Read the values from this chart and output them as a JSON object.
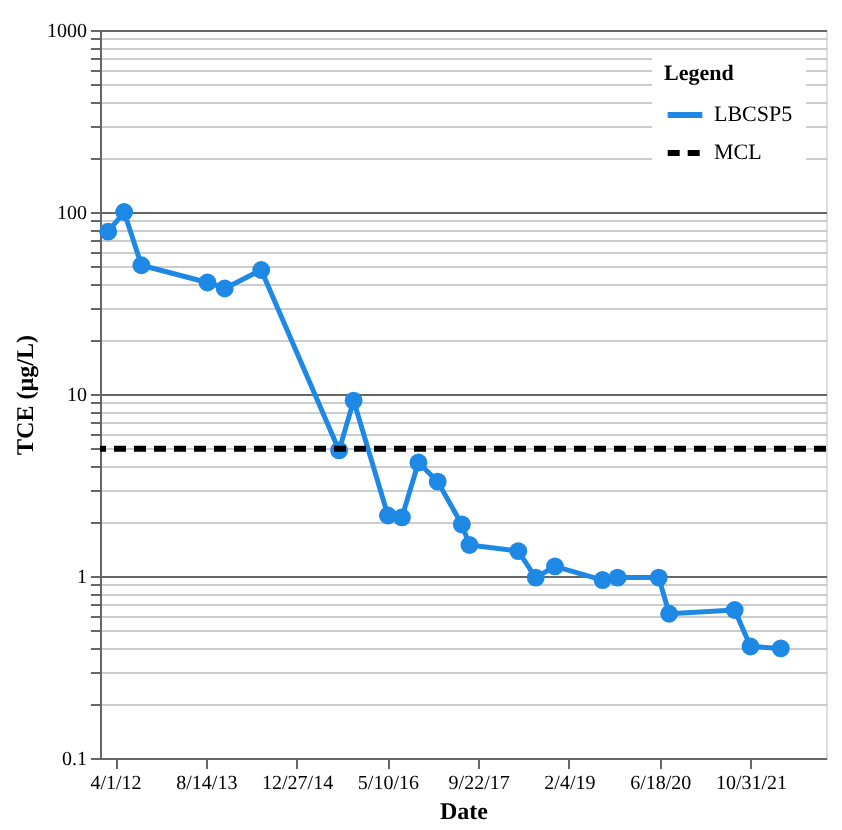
{
  "chart_data": {
    "type": "line",
    "xlabel": "Date",
    "ylabel": "TCE (µg/L)",
    "legend_title": "Legend",
    "legend": "top right",
    "grid": "y",
    "log": "y",
    "marker": "circle",
    "line_style": "solid",
    "x": [
      "2012-02-23",
      "2012-05-21",
      "2012-08-24",
      "2013-08-23",
      "2013-11-26",
      "2014-06-15",
      "2015-08-18",
      "2015-11-06",
      "2016-05-13",
      "2016-07-29",
      "2016-10-28",
      "2017-02-11",
      "2017-06-24",
      "2017-08-05",
      "2018-05-01",
      "2018-08-05",
      "2018-11-19",
      "2019-08-08",
      "2019-10-30",
      "2020-06-13",
      "2020-08-09",
      "2021-08-05",
      "2021-10-31",
      "2022-04-16"
    ],
    "series": [
      {
        "name": "LBCSP5",
        "color": "#1e88e5",
        "values": [
          78,
          100,
          51,
          41,
          38,
          48,
          4.9,
          9.2,
          2.15,
          2.1,
          4.2,
          3.3,
          1.92,
          1.48,
          1.37,
          0.98,
          1.13,
          0.95,
          0.98,
          0.98,
          0.62,
          0.65,
          0.41,
          0.4
        ]
      }
    ],
    "ref_lines": [
      {
        "axis": "y",
        "value": 5,
        "label": "MCL",
        "color": "#000000",
        "line_style": "dashed"
      }
    ],
    "xlim": [
      "2012-01-09",
      "2022-12-21"
    ],
    "xticks": [
      {
        "value": "2012-04-01",
        "label": "4/1/12"
      },
      {
        "value": "2013-08-14",
        "label": "8/14/13"
      },
      {
        "value": "2014-12-27",
        "label": "12/27/14"
      },
      {
        "value": "2016-05-10",
        "label": "5/10/16"
      },
      {
        "value": "2017-09-22",
        "label": "9/22/17"
      },
      {
        "value": "2019-02-04",
        "label": "2/4/19"
      },
      {
        "value": "2020-06-18",
        "label": "6/18/20"
      },
      {
        "value": "2021-10-31",
        "label": "10/31/21"
      }
    ],
    "ylim": [
      0.1,
      1000
    ],
    "yticks": [
      0.1,
      {
        "value": 0.2,
        "label": null
      },
      {
        "value": 0.3,
        "label": null
      },
      {
        "value": 0.4,
        "label": null
      },
      {
        "value": 0.5,
        "label": null
      },
      {
        "value": 0.6,
        "label": null
      },
      {
        "value": 0.7,
        "label": null
      },
      {
        "value": 0.8,
        "label": null
      },
      {
        "value": 0.9,
        "label": null
      },
      1,
      {
        "value": 2,
        "label": null
      },
      {
        "value": 3,
        "label": null
      },
      {
        "value": 4,
        "label": null
      },
      {
        "value": 5,
        "label": null
      },
      {
        "value": 6,
        "label": null
      },
      {
        "value": 7,
        "label": null
      },
      {
        "value": 8,
        "label": null
      },
      {
        "value": 9,
        "label": null
      },
      10,
      {
        "value": 20,
        "label": null
      },
      {
        "value": 30,
        "label": null
      },
      {
        "value": 40,
        "label": null
      },
      {
        "value": 50,
        "label": null
      },
      {
        "value": 60,
        "label": null
      },
      {
        "value": 70,
        "label": null
      },
      {
        "value": 80,
        "label": null
      },
      {
        "value": 90,
        "label": null
      },
      100,
      {
        "value": 200,
        "label": null
      },
      {
        "value": 300,
        "label": null
      },
      {
        "value": 400,
        "label": null
      },
      {
        "value": 500,
        "label": null
      },
      {
        "value": 600,
        "label": null
      },
      {
        "value": 700,
        "label": null
      },
      {
        "value": 800,
        "label": null
      },
      {
        "value": 900,
        "label": null
      },
      1000
    ]
  }
}
